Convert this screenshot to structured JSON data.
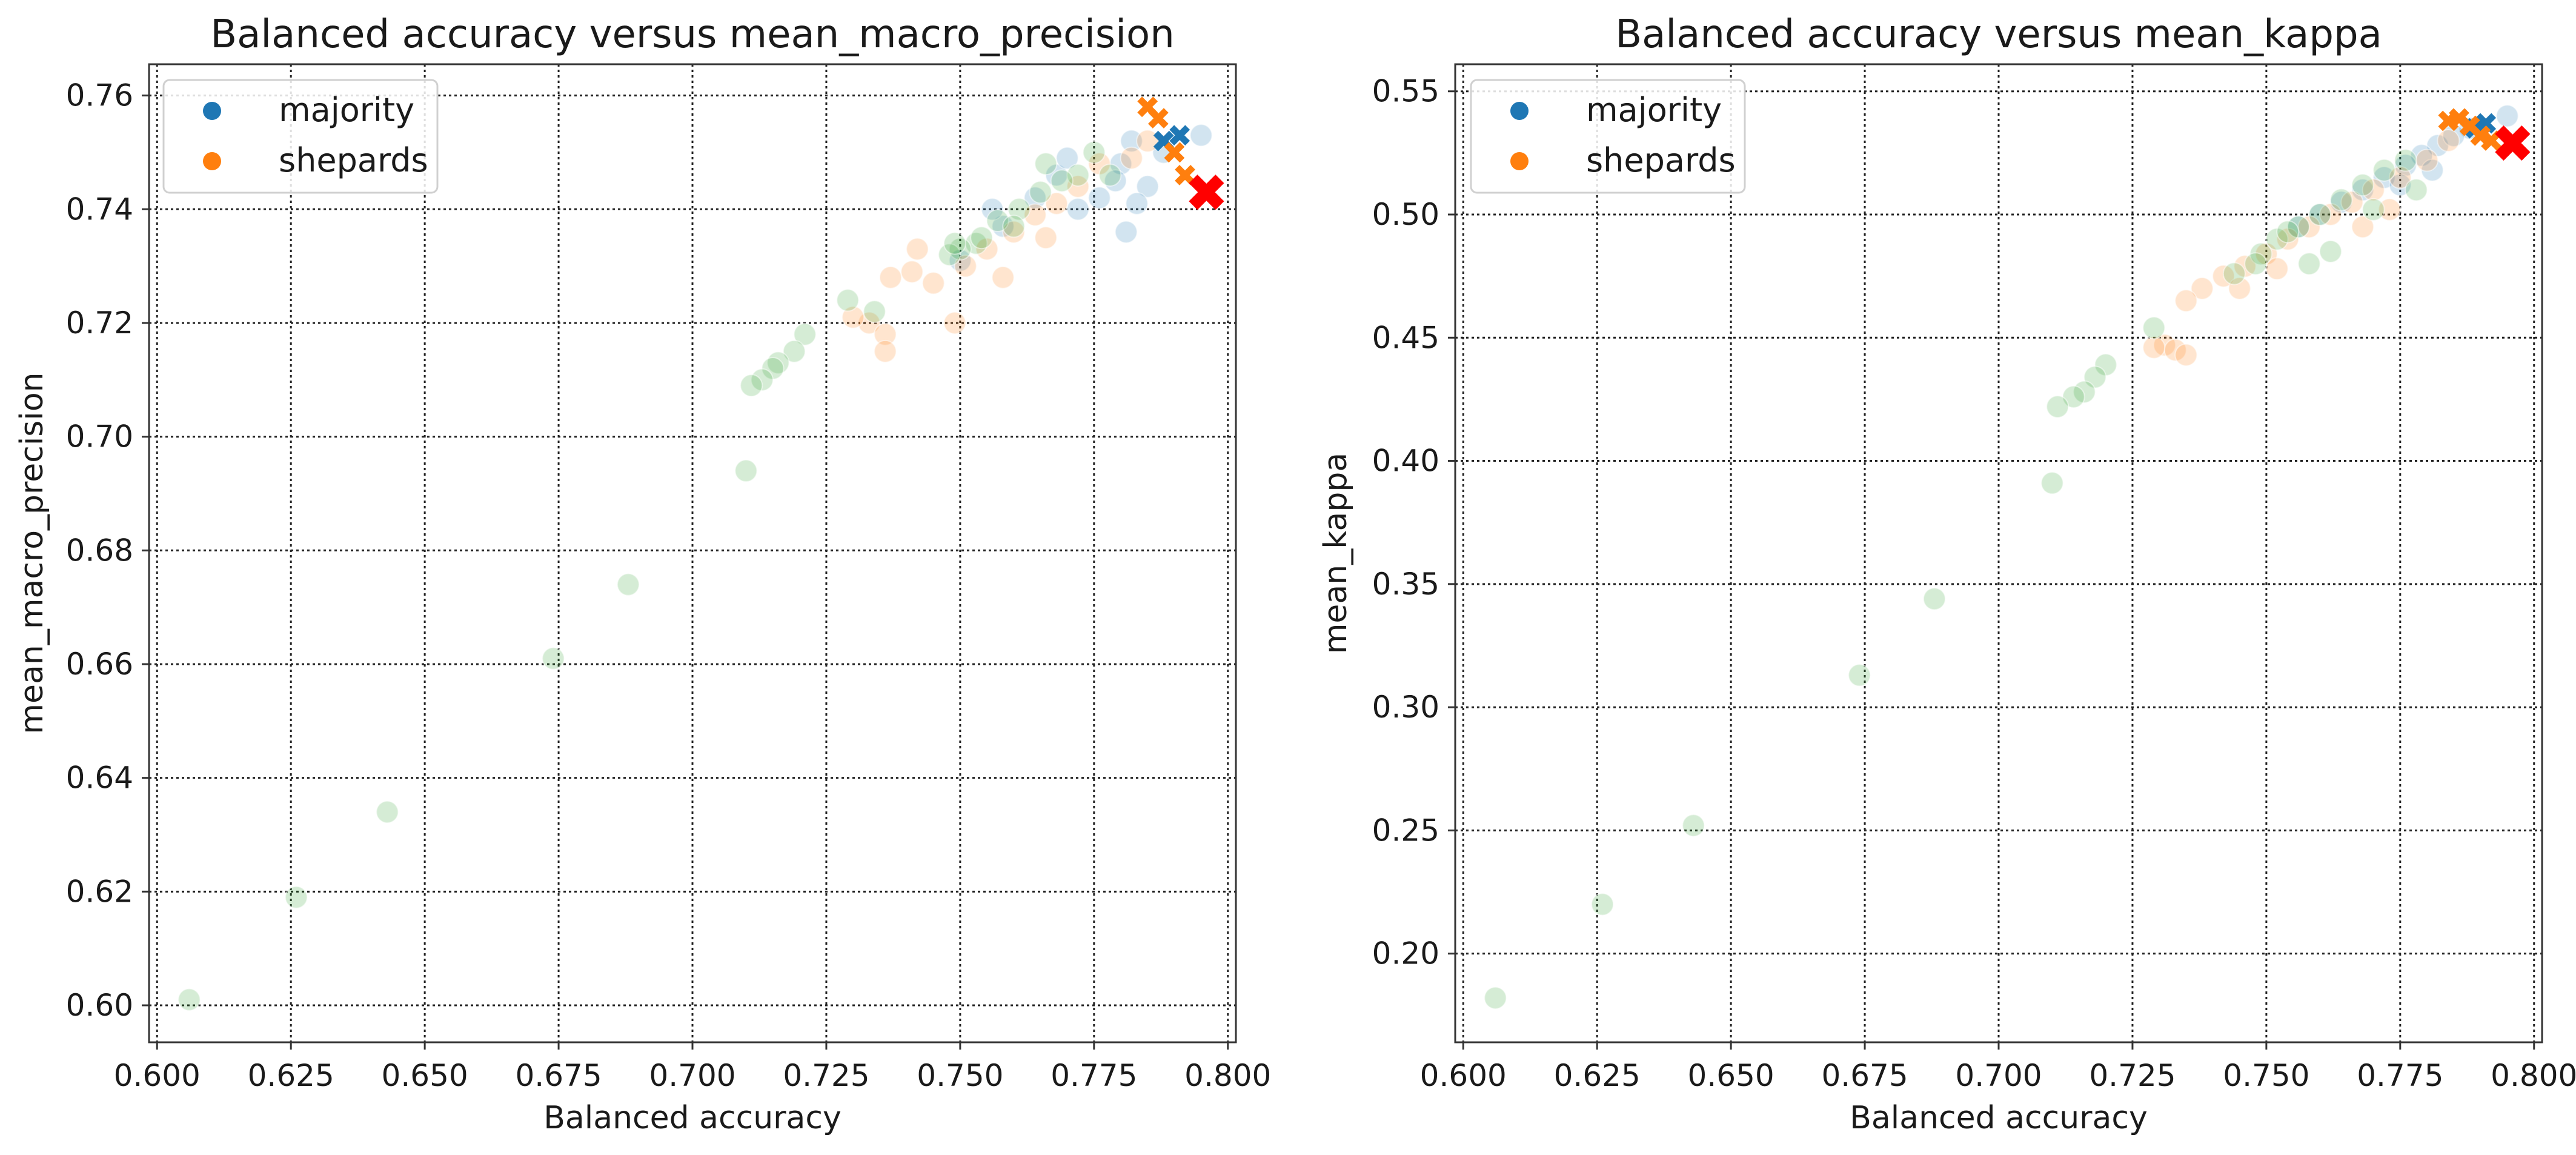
{
  "chart_data": [
    {
      "type": "scatter",
      "title": "Balanced accuracy versus mean_macro_precision",
      "xlabel": "Balanced accuracy",
      "ylabel": "mean_macro_precision",
      "xlim": [
        0.5985,
        0.8015
      ],
      "ylim": [
        0.5935,
        0.7655
      ],
      "xticks": [
        "0.600",
        "0.625",
        "0.650",
        "0.675",
        "0.700",
        "0.725",
        "0.750",
        "0.775",
        "0.800"
      ],
      "yticks": [
        "0.60",
        "0.62",
        "0.64",
        "0.66",
        "0.68",
        "0.70",
        "0.72",
        "0.74",
        "0.76"
      ],
      "grid": true,
      "legend_position": "top-left",
      "legend": [
        {
          "label": "majority",
          "color": "#1f77b4"
        },
        {
          "label": "shepards",
          "color": "#ff7f0e"
        }
      ],
      "series": [
        {
          "name": "majority",
          "color": "#1f77b4",
          "marker": "circle",
          "points": [
            [
              0.795,
              0.753
            ],
            [
              0.788,
              0.75
            ],
            [
              0.782,
              0.752
            ],
            [
              0.78,
              0.748
            ],
            [
              0.785,
              0.744
            ],
            [
              0.779,
              0.745
            ],
            [
              0.776,
              0.742
            ],
            [
              0.772,
              0.74
            ],
            [
              0.768,
              0.746
            ],
            [
              0.764,
              0.742
            ],
            [
              0.758,
              0.737
            ],
            [
              0.756,
              0.74
            ],
            [
              0.75,
              0.731
            ],
            [
              0.781,
              0.736
            ],
            [
              0.783,
              0.741
            ],
            [
              0.77,
              0.749
            ]
          ]
        },
        {
          "name": "shepards",
          "color": "#ff7f0e",
          "marker": "circle",
          "points": [
            [
              0.785,
              0.752
            ],
            [
              0.782,
              0.749
            ],
            [
              0.776,
              0.748
            ],
            [
              0.772,
              0.744
            ],
            [
              0.768,
              0.741
            ],
            [
              0.764,
              0.739
            ],
            [
              0.76,
              0.736
            ],
            [
              0.755,
              0.733
            ],
            [
              0.751,
              0.73
            ],
            [
              0.745,
              0.727
            ],
            [
              0.741,
              0.729
            ],
            [
              0.737,
              0.728
            ],
            [
              0.733,
              0.72
            ],
            [
              0.73,
              0.721
            ],
            [
              0.736,
              0.718
            ],
            [
              0.736,
              0.715
            ],
            [
              0.749,
              0.72
            ],
            [
              0.758,
              0.728
            ],
            [
              0.742,
              0.733
            ],
            [
              0.766,
              0.735
            ]
          ]
        },
        {
          "name": "",
          "color": "#2ca02c",
          "marker": "circle",
          "points": [
            [
              0.775,
              0.75
            ],
            [
              0.772,
              0.746
            ],
            [
              0.769,
              0.745
            ],
            [
              0.765,
              0.743
            ],
            [
              0.761,
              0.74
            ],
            [
              0.757,
              0.738
            ],
            [
              0.753,
              0.734
            ],
            [
              0.75,
              0.733
            ],
            [
              0.748,
              0.732
            ],
            [
              0.749,
              0.734
            ],
            [
              0.721,
              0.718
            ],
            [
              0.719,
              0.715
            ],
            [
              0.716,
              0.713
            ],
            [
              0.715,
              0.712
            ],
            [
              0.713,
              0.71
            ],
            [
              0.711,
              0.709
            ],
            [
              0.729,
              0.724
            ],
            [
              0.734,
              0.722
            ],
            [
              0.71,
              0.694
            ],
            [
              0.688,
              0.674
            ],
            [
              0.674,
              0.661
            ],
            [
              0.643,
              0.634
            ],
            [
              0.626,
              0.619
            ],
            [
              0.606,
              0.601
            ],
            [
              0.76,
              0.737
            ],
            [
              0.754,
              0.735
            ],
            [
              0.766,
              0.748
            ],
            [
              0.778,
              0.746
            ]
          ]
        },
        {
          "name": "",
          "color": "#1f77b4",
          "marker": "x",
          "points": [
            [
              0.791,
              0.753
            ],
            [
              0.788,
              0.752
            ]
          ]
        },
        {
          "name": "",
          "color": "#ff7f0e",
          "marker": "x",
          "points": [
            [
              0.785,
              0.758
            ],
            [
              0.787,
              0.756
            ],
            [
              0.79,
              0.75
            ],
            [
              0.792,
              0.746
            ]
          ]
        },
        {
          "name": "",
          "color": "#ff0000",
          "marker": "x-large",
          "points": [
            [
              0.796,
              0.743
            ]
          ]
        }
      ]
    },
    {
      "type": "scatter",
      "title": "Balanced accuracy versus mean_kappa",
      "xlabel": "Balanced accuracy",
      "ylabel": "mean_kappa",
      "xlim": [
        0.5985,
        0.8015
      ],
      "ylim": [
        0.164,
        0.561
      ],
      "xticks": [
        "0.600",
        "0.625",
        "0.650",
        "0.675",
        "0.700",
        "0.725",
        "0.750",
        "0.775",
        "0.800"
      ],
      "yticks": [
        "0.20",
        "0.25",
        "0.30",
        "0.35",
        "0.40",
        "0.45",
        "0.50",
        "0.55"
      ],
      "grid": true,
      "legend_position": "top-left",
      "legend": [
        {
          "label": "majority",
          "color": "#1f77b4"
        },
        {
          "label": "shepards",
          "color": "#ff7f0e"
        }
      ],
      "series": [
        {
          "name": "majority",
          "color": "#1f77b4",
          "marker": "circle",
          "points": [
            [
              0.795,
              0.54
            ],
            [
              0.788,
              0.535
            ],
            [
              0.782,
              0.528
            ],
            [
              0.779,
              0.524
            ],
            [
              0.776,
              0.52
            ],
            [
              0.772,
              0.515
            ],
            [
              0.768,
              0.51
            ],
            [
              0.764,
              0.505
            ],
            [
              0.76,
              0.5
            ],
            [
              0.756,
              0.495
            ],
            [
              0.785,
              0.532
            ],
            [
              0.781,
              0.518
            ],
            [
              0.775,
              0.512
            ]
          ]
        },
        {
          "name": "shepards",
          "color": "#ff7f0e",
          "marker": "circle",
          "points": [
            [
              0.784,
              0.53
            ],
            [
              0.78,
              0.522
            ],
            [
              0.775,
              0.515
            ],
            [
              0.77,
              0.51
            ],
            [
              0.766,
              0.505
            ],
            [
              0.762,
              0.5
            ],
            [
              0.758,
              0.495
            ],
            [
              0.754,
              0.49
            ],
            [
              0.75,
              0.484
            ],
            [
              0.746,
              0.479
            ],
            [
              0.742,
              0.475
            ],
            [
              0.738,
              0.47
            ],
            [
              0.735,
              0.465
            ],
            [
              0.731,
              0.447
            ],
            [
              0.733,
              0.445
            ],
            [
              0.735,
              0.443
            ],
            [
              0.729,
              0.446
            ],
            [
              0.768,
              0.495
            ],
            [
              0.773,
              0.502
            ],
            [
              0.745,
              0.47
            ],
            [
              0.752,
              0.478
            ]
          ]
        },
        {
          "name": "",
          "color": "#2ca02c",
          "marker": "circle",
          "points": [
            [
              0.776,
              0.522
            ],
            [
              0.772,
              0.518
            ],
            [
              0.768,
              0.512
            ],
            [
              0.764,
              0.506
            ],
            [
              0.76,
              0.5
            ],
            [
              0.756,
              0.495
            ],
            [
              0.752,
              0.49
            ],
            [
              0.749,
              0.484
            ],
            [
              0.748,
              0.48
            ],
            [
              0.744,
              0.476
            ],
            [
              0.72,
              0.439
            ],
            [
              0.718,
              0.434
            ],
            [
              0.716,
              0.428
            ],
            [
              0.714,
              0.426
            ],
            [
              0.711,
              0.422
            ],
            [
              0.729,
              0.454
            ],
            [
              0.71,
              0.391
            ],
            [
              0.688,
              0.344
            ],
            [
              0.674,
              0.313
            ],
            [
              0.643,
              0.252
            ],
            [
              0.626,
              0.22
            ],
            [
              0.606,
              0.182
            ],
            [
              0.758,
              0.48
            ],
            [
              0.762,
              0.485
            ],
            [
              0.77,
              0.502
            ],
            [
              0.778,
              0.51
            ],
            [
              0.754,
              0.493
            ]
          ]
        },
        {
          "name": "",
          "color": "#1f77b4",
          "marker": "x",
          "points": [
            [
              0.791,
              0.537
            ],
            [
              0.789,
              0.535
            ]
          ]
        },
        {
          "name": "",
          "color": "#ff7f0e",
          "marker": "x",
          "points": [
            [
              0.784,
              0.538
            ],
            [
              0.786,
              0.539
            ],
            [
              0.788,
              0.536
            ],
            [
              0.79,
              0.532
            ],
            [
              0.792,
              0.53
            ]
          ]
        },
        {
          "name": "",
          "color": "#ff0000",
          "marker": "x-large",
          "points": [
            [
              0.796,
              0.529
            ]
          ]
        }
      ]
    }
  ]
}
